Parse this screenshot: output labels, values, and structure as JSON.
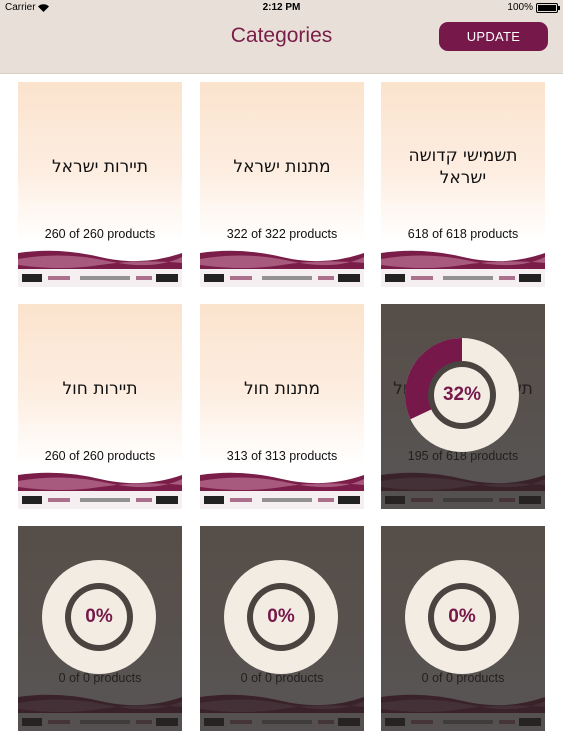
{
  "status_bar": {
    "carrier": "Carrier",
    "time": "2:12 PM",
    "battery": "100%"
  },
  "nav": {
    "title": "Categories",
    "update_label": "UPDATE"
  },
  "categories": [
    {
      "name": "תיירות ישראל",
      "count": "260 of 260 products",
      "progress": null
    },
    {
      "name": "מתנות ישראל",
      "count": "322 of 322 products",
      "progress": null
    },
    {
      "name": "תשמישי קדושה ישראל",
      "count": "618 of 618 products",
      "progress": null
    },
    {
      "name": "תיירות חול",
      "count": "260 of 260 products",
      "progress": null
    },
    {
      "name": "מתנות חול",
      "count": "313 of 313 products",
      "progress": null
    },
    {
      "name": "תשמישי קדושה חול",
      "count": "195 of 618 products",
      "progress": {
        "percent": 32,
        "label": "32%"
      }
    },
    {
      "name": "",
      "count": "0 of 0 products",
      "progress": {
        "percent": 0,
        "label": "0%"
      }
    },
    {
      "name": "",
      "count": "0 of 0 products",
      "progress": {
        "percent": 0,
        "label": "0%"
      }
    },
    {
      "name": "",
      "count": "0 of 0 products",
      "progress": {
        "percent": 0,
        "label": "0%"
      }
    }
  ],
  "colors": {
    "brand": "#76194a",
    "nav_background": "#e8e0d8",
    "ring_track": "#f3ece3",
    "ring_inner": "#4a4440"
  },
  "icons": {
    "wifi": "wifi-icon",
    "battery": "battery-icon"
  }
}
